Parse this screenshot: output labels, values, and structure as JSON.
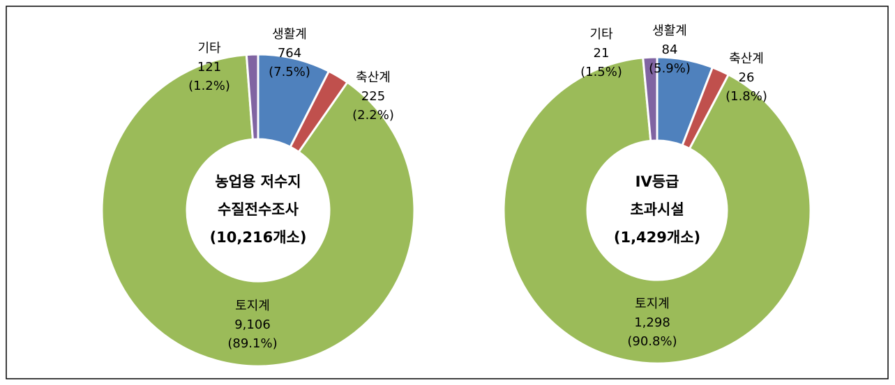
{
  "chart_data": [
    {
      "type": "pie",
      "donut": true,
      "center_text": [
        "농업용 저수지",
        "수질전수조사",
        "(10,216개소)"
      ],
      "categories": [
        "생활계",
        "축산계",
        "토지계",
        "기타"
      ],
      "values": [
        764,
        225,
        9106,
        121
      ],
      "value_labels": [
        "764",
        "225",
        "9,106",
        "121"
      ],
      "percent_labels": [
        "(7.5%)",
        "(2.2%)",
        "(89.1%)",
        "(1.2%)"
      ],
      "colors": [
        "#4f81bd",
        "#c0504d",
        "#9bbb59",
        "#8064a2"
      ]
    },
    {
      "type": "pie",
      "donut": true,
      "center_text": [
        "IV등급",
        "초과시설",
        "(1,429개소)"
      ],
      "categories": [
        "생활계",
        "축산계",
        "토지계",
        "기타"
      ],
      "values": [
        84,
        26,
        1298,
        21
      ],
      "value_labels": [
        "84",
        "26",
        "1,298",
        "21"
      ],
      "percent_labels": [
        "(5.9%)",
        "(1.8%)",
        "(90.8%)",
        "(1.5%)"
      ],
      "colors": [
        "#4f81bd",
        "#c0504d",
        "#9bbb59",
        "#8064a2"
      ]
    }
  ]
}
